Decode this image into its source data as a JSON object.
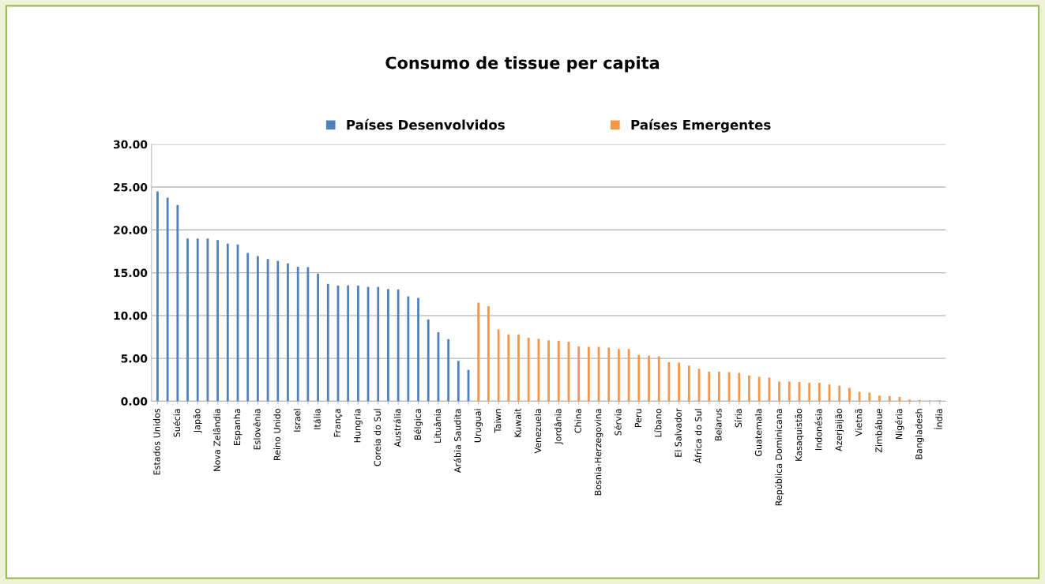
{
  "chart_data": {
    "type": "bar",
    "title": "Consumo de tissue per capita",
    "categories": [
      "Estados Unidos",
      null,
      "Suécia",
      null,
      "Japão",
      null,
      "Nova Zelândia",
      null,
      "Espanha",
      null,
      "Eslovênia",
      null,
      "Reino Unido",
      null,
      "Israel",
      null,
      "Itália",
      null,
      "França",
      null,
      "Hungria",
      null,
      "Coreia do Sul",
      null,
      "Austrália",
      null,
      "Bélgica",
      null,
      "Lituânia",
      null,
      "Arábia Saudita",
      null,
      "Uruguai",
      null,
      "Taiwn",
      null,
      "Kuwait",
      null,
      "Venezuela",
      null,
      "Jordânia",
      null,
      "China",
      null,
      "Bosnia-Herzegovina",
      null,
      "Sérvia",
      null,
      "Peru",
      null,
      "Líbano",
      null,
      "El Salvador",
      null,
      "África do Sul",
      null,
      "Belarus",
      null,
      "Síria",
      null,
      "Guatemala",
      null,
      "República Dominicana",
      null,
      "Kasaquistão",
      null,
      "Indonésia",
      null,
      "Azerjaijão",
      null,
      "Vietnã",
      null,
      "Zimbábue",
      null,
      "Nigéria",
      null,
      "Bangladesh",
      null,
      "Índia"
    ],
    "series": [
      {
        "name": "Países Desenvolvidos",
        "color": "#4f81bd",
        "values": [
          24.5,
          23.75,
          22.9,
          19.0,
          19.0,
          19.0,
          18.8,
          18.4,
          18.3,
          17.3,
          16.95,
          16.6,
          16.4,
          16.1,
          15.7,
          15.65,
          14.9,
          13.7,
          13.5,
          13.5,
          13.5,
          13.35,
          13.35,
          13.1,
          13.05,
          12.25,
          12.05,
          9.55,
          8.05,
          7.25,
          4.7,
          3.65,
          null,
          null,
          null,
          null,
          null,
          null,
          null,
          null,
          null,
          null,
          null,
          null,
          null,
          null,
          null,
          null,
          null,
          null,
          null,
          null,
          null,
          null,
          null,
          null,
          null,
          null,
          null,
          null,
          null,
          null,
          null,
          null,
          null,
          null,
          null,
          null,
          null,
          null,
          null,
          null,
          null,
          null,
          null,
          null,
          null,
          null,
          null
        ]
      },
      {
        "name": "Países Emergentes",
        "color": "#f79646",
        "values": [
          null,
          null,
          null,
          null,
          null,
          null,
          null,
          null,
          null,
          null,
          null,
          null,
          null,
          null,
          null,
          null,
          null,
          null,
          null,
          null,
          null,
          null,
          null,
          null,
          null,
          null,
          null,
          null,
          null,
          null,
          null,
          null,
          11.5,
          11.1,
          8.4,
          7.8,
          7.8,
          7.4,
          7.3,
          7.1,
          7.05,
          6.95,
          6.4,
          6.35,
          6.35,
          6.25,
          6.1,
          6.1,
          5.4,
          5.3,
          5.25,
          4.55,
          4.5,
          4.15,
          3.8,
          3.45,
          3.45,
          3.4,
          3.3,
          3.0,
          2.85,
          2.75,
          2.3,
          2.3,
          2.25,
          2.15,
          2.15,
          1.95,
          1.8,
          1.55,
          1.1,
          1.0,
          0.65,
          0.6,
          0.5,
          0.2,
          0.15,
          0.1,
          0.1
        ]
      }
    ],
    "ylim": [
      0,
      30
    ],
    "yticks": [
      {
        "value": 0,
        "label": "0.00"
      },
      {
        "value": 5,
        "label": "5.00"
      },
      {
        "value": 10,
        "label": "10.00"
      },
      {
        "value": 15,
        "label": "15.00"
      },
      {
        "value": 20,
        "label": "20.00"
      },
      {
        "value": 25,
        "label": "25.00"
      },
      {
        "value": 30,
        "label": "30.00"
      }
    ],
    "grid": "y",
    "legend": "top"
  }
}
